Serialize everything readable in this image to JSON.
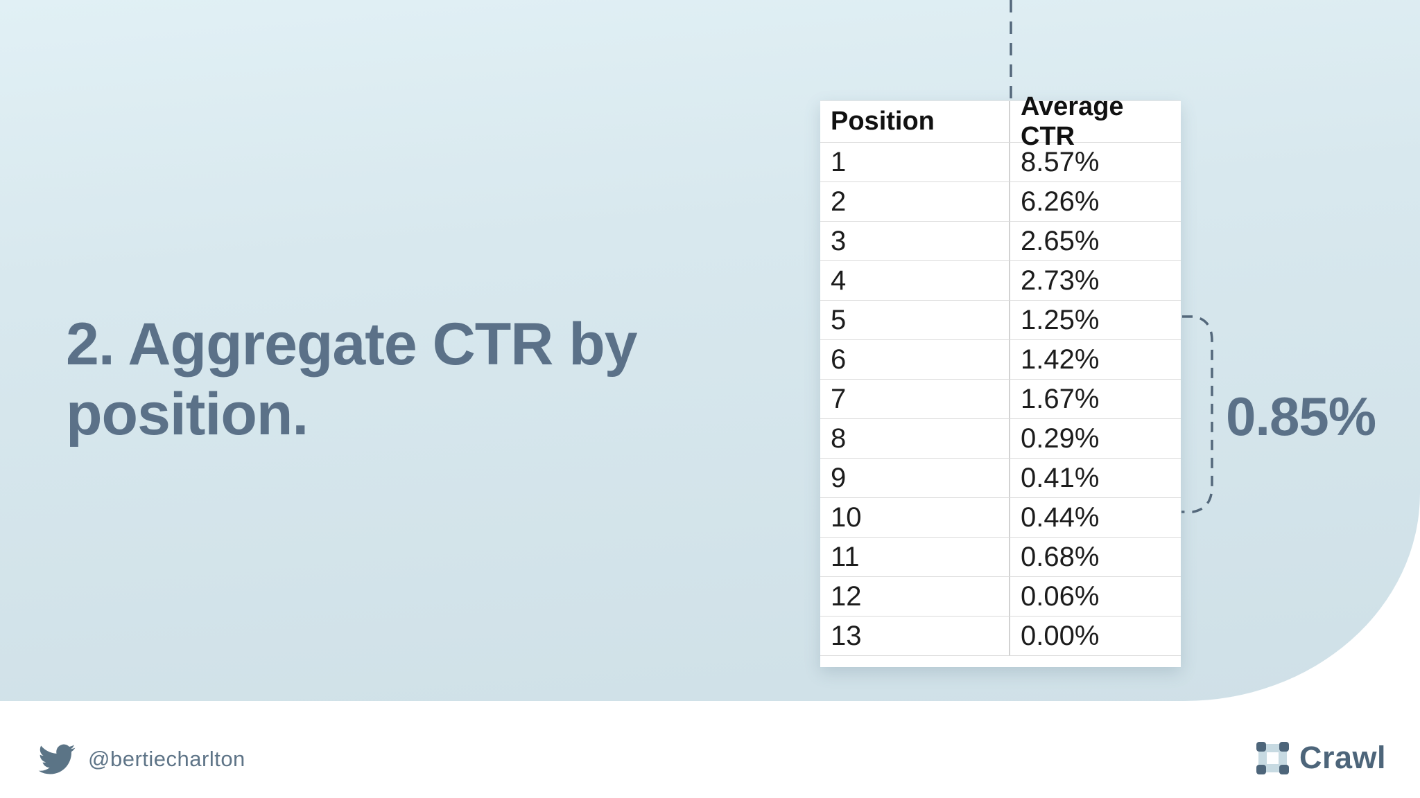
{
  "slide": {
    "title": "2. Aggregate CTR by position.",
    "annotation": {
      "value": "0.85%",
      "bracket_rows_start": "5",
      "bracket_rows_end": "9"
    }
  },
  "table": {
    "columns": [
      "Position",
      "Average CTR"
    ],
    "rows": [
      [
        "1",
        "8.57%"
      ],
      [
        "2",
        "6.26%"
      ],
      [
        "3",
        "2.65%"
      ],
      [
        "4",
        "2.73%"
      ],
      [
        "5",
        "1.25%"
      ],
      [
        "6",
        "1.42%"
      ],
      [
        "7",
        "1.67%"
      ],
      [
        "8",
        "0.29%"
      ],
      [
        "9",
        "0.41%"
      ],
      [
        "10",
        "0.44%"
      ],
      [
        "11",
        "0.68%"
      ],
      [
        "12",
        "0.06%"
      ],
      [
        "13",
        "0.00%"
      ]
    ]
  },
  "chart_data": {
    "type": "table",
    "title": "Aggregate CTR by position",
    "columns": [
      "Position",
      "Average CTR"
    ],
    "positions": [
      1,
      2,
      3,
      4,
      5,
      6,
      7,
      8,
      9,
      10,
      11,
      12,
      13
    ],
    "average_ctr_percent": [
      8.57,
      6.26,
      2.65,
      2.73,
      1.25,
      1.42,
      1.67,
      0.29,
      0.41,
      0.44,
      0.68,
      0.06,
      0.0
    ],
    "annotation": {
      "label": "0.85%",
      "bracket_span_positions": [
        5,
        9
      ]
    }
  },
  "footer": {
    "twitter_handle": "@bertiecharlton",
    "brand_name": "Crawl"
  },
  "icons": {
    "twitter_icon": "twitter-bird",
    "crawl_logo_icon": "four-corner-square-frame"
  },
  "colors": {
    "panel_blue": "#d8e8ee",
    "accent_slate": "#5b7188",
    "brand_slate": "#4d657a",
    "dashed_line": "#54687b",
    "table_text": "#1c1c1c",
    "footer_white": "#ffffff"
  }
}
